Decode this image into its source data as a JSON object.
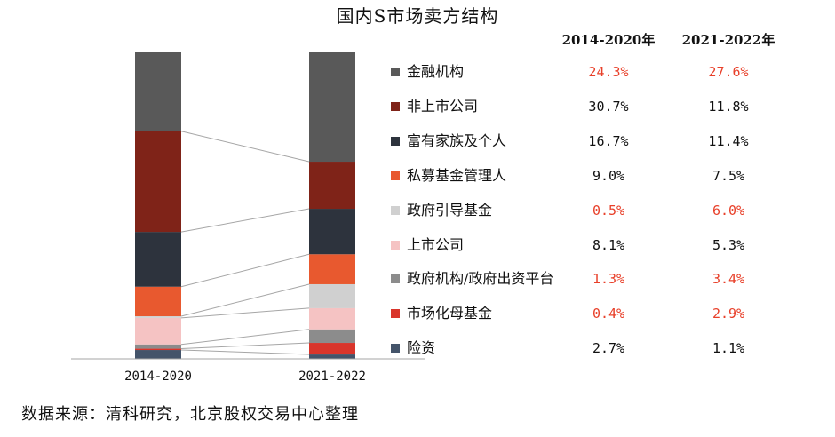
{
  "title": "国内S市场卖方结构",
  "column_headers": [
    "2014-2020年",
    "2021-2022年"
  ],
  "source": "数据来源：清科研究，北京股权交易中心整理",
  "chart_data": {
    "type": "bar",
    "stacked": true,
    "percent_stacked": true,
    "categories": [
      "2014-2020",
      "2021-2022"
    ],
    "legend_position": "right",
    "series": [
      {
        "name": "金融机构",
        "color": "#595959",
        "values": [
          24.3,
          27.6
        ],
        "labels": [
          "24.3%",
          "27.6%"
        ],
        "highlight": [
          true,
          true
        ]
      },
      {
        "name": "非上市公司",
        "color": "#7f2318",
        "values": [
          30.7,
          11.8
        ],
        "labels": [
          "30.7%",
          "11.8%"
        ],
        "highlight": [
          false,
          false
        ]
      },
      {
        "name": "富有家族及个人",
        "color": "#2d333d",
        "values": [
          16.7,
          11.4
        ],
        "labels": [
          "16.7%",
          "11.4%"
        ],
        "highlight": [
          false,
          false
        ]
      },
      {
        "name": "私募基金管理人",
        "color": "#e8592f",
        "values": [
          9.0,
          7.5
        ],
        "labels": [
          "9.0%",
          "7.5%"
        ],
        "highlight": [
          false,
          false
        ]
      },
      {
        "name": "政府引导基金",
        "color": "#d0d0d0",
        "values": [
          0.5,
          6.0
        ],
        "labels": [
          "0.5%",
          "6.0%"
        ],
        "highlight": [
          true,
          true
        ]
      },
      {
        "name": "上市公司",
        "color": "#f5c3c3",
        "values": [
          8.1,
          5.3
        ],
        "labels": [
          "8.1%",
          "5.3%"
        ],
        "highlight": [
          false,
          false
        ]
      },
      {
        "name": "政府机构/政府出资平台",
        "color": "#8c8c8c",
        "values": [
          1.3,
          3.4
        ],
        "labels": [
          "1.3%",
          "3.4%"
        ],
        "highlight": [
          true,
          true
        ]
      },
      {
        "name": "市场化母基金",
        "color": "#d9352b",
        "values": [
          0.4,
          2.9
        ],
        "labels": [
          "0.4%",
          "2.9%"
        ],
        "highlight": [
          true,
          true
        ]
      },
      {
        "name": "险资",
        "color": "#44546a",
        "values": [
          2.7,
          1.1
        ],
        "labels": [
          "2.7%",
          "1.1%"
        ],
        "highlight": [
          false,
          false
        ]
      }
    ]
  }
}
